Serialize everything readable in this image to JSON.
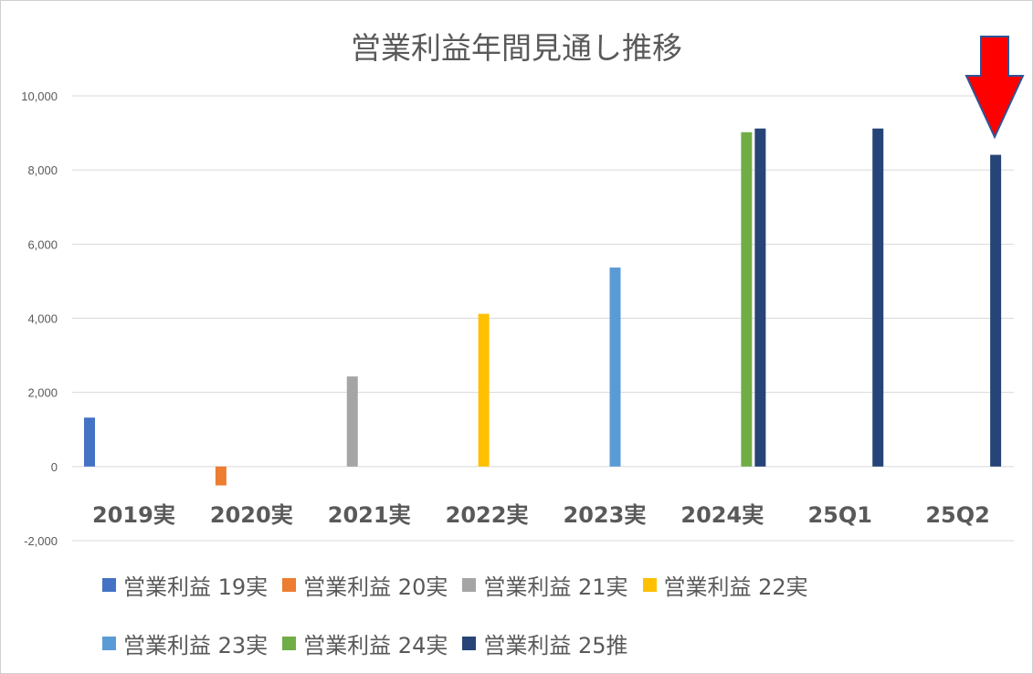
{
  "chart_data": {
    "type": "bar",
    "title": "営業利益年間見通し推移",
    "categories": [
      "2019実",
      "2020実",
      "2021実",
      "2022実",
      "2023実",
      "2024実",
      "25Q1",
      "25Q2"
    ],
    "ylim": [
      -2000,
      10000
    ],
    "yticks": [
      {
        "value": 10000,
        "label": "10,000"
      },
      {
        "value": 8000,
        "label": "8,000"
      },
      {
        "value": 6000,
        "label": "6,000"
      },
      {
        "value": 4000,
        "label": "4,000"
      },
      {
        "value": 2000,
        "label": "2,000"
      },
      {
        "value": 0,
        "label": "0"
      },
      {
        "value": -2000,
        "label": "-2,000"
      }
    ],
    "negative_tick_color": "#FF0000",
    "grid": true,
    "legend_position": "bottom",
    "series": [
      {
        "name": "営業利益 19実",
        "color": "#4472C4",
        "values": [
          1320,
          null,
          null,
          null,
          null,
          null,
          null,
          null
        ]
      },
      {
        "name": "営業利益 20実",
        "color": "#ED7D31",
        "values": [
          null,
          -510,
          null,
          null,
          null,
          null,
          null,
          null
        ]
      },
      {
        "name": "営業利益 21実",
        "color": "#A5A5A5",
        "values": [
          null,
          null,
          2430,
          null,
          null,
          null,
          null,
          null
        ]
      },
      {
        "name": "営業利益 22実",
        "color": "#FFC000",
        "values": [
          null,
          null,
          null,
          4120,
          null,
          null,
          null,
          null
        ]
      },
      {
        "name": "営業利益 23実",
        "color": "#5B9BD5",
        "values": [
          null,
          null,
          null,
          null,
          5370,
          null,
          null,
          null
        ]
      },
      {
        "name": "営業利益 24実",
        "color": "#70AD47",
        "values": [
          null,
          null,
          null,
          null,
          null,
          9020,
          null,
          null
        ]
      },
      {
        "name": "営業利益 25推",
        "color": "#264478",
        "values": [
          null,
          null,
          null,
          null,
          null,
          9120,
          9120,
          8410
        ]
      }
    ],
    "annotation": {
      "shape": "down-arrow",
      "color": "#FF0000",
      "outline": "#2F5597",
      "points_to": "25Q2"
    }
  }
}
